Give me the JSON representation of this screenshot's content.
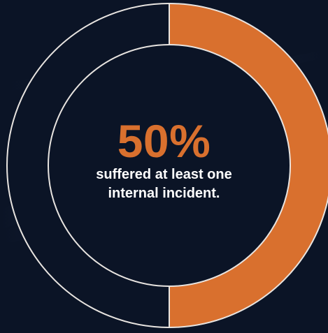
{
  "chart_data": {
    "type": "pie",
    "variant": "donut",
    "slices": [
      {
        "value": 50,
        "color": "#d9702e"
      },
      {
        "value": 50,
        "color": "#0b1426"
      }
    ],
    "center_value": "50%",
    "center_caption_lines": [
      "suffered at least one",
      "internal incident."
    ]
  },
  "colors": {
    "background": "#0b1426",
    "accent": "#d9702e",
    "ring_stroke": "#e8e4e0",
    "text": "#ffffff"
  }
}
